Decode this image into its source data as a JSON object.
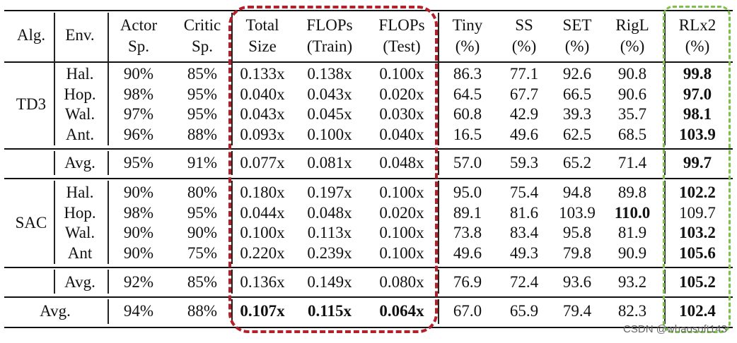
{
  "headers": [
    [
      "Alg."
    ],
    [
      "Env."
    ],
    [
      "Actor",
      "Sp."
    ],
    [
      "Critic",
      "Sp."
    ],
    [
      "Total",
      "Size"
    ],
    [
      "FLOPs",
      "(Train)"
    ],
    [
      "FLOPs",
      "(Test)"
    ],
    [
      "Tiny",
      "(%)"
    ],
    [
      "SS",
      "(%)"
    ],
    [
      "SET",
      "(%)"
    ],
    [
      "RigL",
      "(%)"
    ],
    [
      "RLx2",
      "(%)"
    ]
  ],
  "groups": [
    {
      "alg": "TD3",
      "rows": [
        [
          "Hal.",
          "90%",
          "85%",
          "0.133x",
          "0.138x",
          "0.100x",
          "86.3",
          "77.1",
          "92.6",
          "90.8",
          "99.8"
        ],
        [
          "Hop.",
          "98%",
          "95%",
          "0.040x",
          "0.043x",
          "0.020x",
          "64.5",
          "67.7",
          "66.5",
          "90.6",
          "97.0"
        ],
        [
          "Wal.",
          "97%",
          "95%",
          "0.043x",
          "0.045x",
          "0.030x",
          "60.8",
          "42.9",
          "39.3",
          "35.7",
          "98.1"
        ],
        [
          "Ant.",
          "96%",
          "88%",
          "0.093x",
          "0.100x",
          "0.040x",
          "16.5",
          "49.6",
          "62.5",
          "68.5",
          "103.9"
        ]
      ],
      "avg": [
        "Avg.",
        "95%",
        "91%",
        "0.077x",
        "0.081x",
        "0.048x",
        "57.0",
        "59.3",
        "65.2",
        "71.4",
        "99.7"
      ]
    },
    {
      "alg": "SAC",
      "rows": [
        [
          "Hal.",
          "90%",
          "80%",
          "0.180x",
          "0.197x",
          "0.100x",
          "95.0",
          "75.4",
          "94.8",
          "89.8",
          "102.2"
        ],
        [
          "Hop.",
          "98%",
          "95%",
          "0.044x",
          "0.048x",
          "0.020x",
          "89.1",
          "81.6",
          "103.9",
          "110.0",
          "109.7"
        ],
        [
          "Wal.",
          "90%",
          "90%",
          "0.100x",
          "0.113x",
          "0.100x",
          "73.8",
          "83.4",
          "95.8",
          "81.9",
          "103.2"
        ],
        [
          "Ant",
          "90%",
          "75%",
          "0.220x",
          "0.239x",
          "0.100x",
          "49.6",
          "49.3",
          "79.8",
          "90.9",
          "105.6"
        ]
      ],
      "avg": [
        "Avg.",
        "92%",
        "85%",
        "0.136x",
        "0.149x",
        "0.080x",
        "76.9",
        "72.4",
        "93.6",
        "93.2",
        "105.2"
      ]
    }
  ],
  "overall": [
    "Avg.",
    "94%",
    "88%",
    "0.107x",
    "0.115x",
    "0.064x",
    "67.0",
    "65.9",
    "79.4",
    "82.3",
    "102.4"
  ],
  "watermark": "CSDN @whaosoft143",
  "colors": {
    "red_box": "#b3202a",
    "green_box": "#7cc24a"
  }
}
